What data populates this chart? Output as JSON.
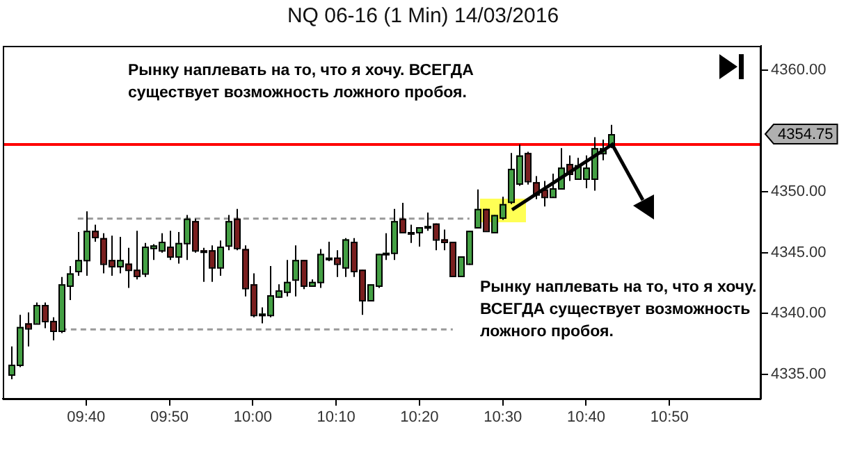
{
  "chart_data": {
    "type": "candlestick",
    "title": "NQ 06-16 (1 Min)  14/03/2016",
    "x": [
      "2016-03-14T09:31",
      "2016-03-14T09:32",
      "2016-03-14T09:33",
      "2016-03-14T09:34",
      "2016-03-14T09:35",
      "2016-03-14T09:36",
      "2016-03-14T09:37",
      "2016-03-14T09:38",
      "2016-03-14T09:39",
      "2016-03-14T09:40",
      "2016-03-14T09:41",
      "2016-03-14T09:42",
      "2016-03-14T09:43",
      "2016-03-14T09:44",
      "2016-03-14T09:45",
      "2016-03-14T09:46",
      "2016-03-14T09:47",
      "2016-03-14T09:48",
      "2016-03-14T09:49",
      "2016-03-14T09:50",
      "2016-03-14T09:51",
      "2016-03-14T09:52",
      "2016-03-14T09:53",
      "2016-03-14T09:54",
      "2016-03-14T09:55",
      "2016-03-14T09:56",
      "2016-03-14T09:57",
      "2016-03-14T09:58",
      "2016-03-14T09:59",
      "2016-03-14T10:00",
      "2016-03-14T10:01",
      "2016-03-14T10:02",
      "2016-03-14T10:03",
      "2016-03-14T10:04",
      "2016-03-14T10:05",
      "2016-03-14T10:06",
      "2016-03-14T10:07",
      "2016-03-14T10:08",
      "2016-03-14T10:09",
      "2016-03-14T10:10",
      "2016-03-14T10:11",
      "2016-03-14T10:12",
      "2016-03-14T10:13",
      "2016-03-14T10:14",
      "2016-03-14T10:15",
      "2016-03-14T10:16",
      "2016-03-14T10:17",
      "2016-03-14T10:18",
      "2016-03-14T10:19",
      "2016-03-14T10:20",
      "2016-03-14T10:21",
      "2016-03-14T10:22",
      "2016-03-14T10:23",
      "2016-03-14T10:24",
      "2016-03-14T10:25",
      "2016-03-14T10:26",
      "2016-03-14T10:27",
      "2016-03-14T10:28",
      "2016-03-14T10:29",
      "2016-03-14T10:30",
      "2016-03-14T10:31",
      "2016-03-14T10:32",
      "2016-03-14T10:33",
      "2016-03-14T10:34",
      "2016-03-14T10:35",
      "2016-03-14T10:36",
      "2016-03-14T10:37",
      "2016-03-14T10:38",
      "2016-03-14T10:39",
      "2016-03-14T10:40",
      "2016-03-14T10:41",
      "2016-03-14T10:42",
      "2016-03-14T10:43"
    ],
    "ohlc": [
      [
        4335.0,
        4337.3,
        4334.6,
        4335.8
      ],
      [
        4335.8,
        4339.9,
        4335.6,
        4338.9
      ],
      [
        4339.2,
        4340.1,
        4337.3,
        4338.8
      ],
      [
        4339.2,
        4340.9,
        4339.2,
        4340.7
      ],
      [
        4340.7,
        4340.9,
        4338.8,
        4339.4
      ],
      [
        4339.4,
        4339.7,
        4337.8,
        4338.6
      ],
      [
        4338.6,
        4343.0,
        4338.4,
        4342.4
      ],
      [
        4342.3,
        4343.9,
        4341.1,
        4343.3
      ],
      [
        4343.5,
        4346.7,
        4343.1,
        4344.4
      ],
      [
        4344.4,
        4348.4,
        4343.1,
        4346.8
      ],
      [
        4346.8,
        4347.3,
        4345.9,
        4346.3
      ],
      [
        4346.2,
        4346.6,
        4343.3,
        4344.1
      ],
      [
        4344.4,
        4346.4,
        4343.1,
        4343.9
      ],
      [
        4343.9,
        4346.3,
        4343.3,
        4344.4
      ],
      [
        4344.1,
        4345.4,
        4342.1,
        4343.6
      ],
      [
        4343.6,
        4346.8,
        4342.8,
        4343.1
      ],
      [
        4343.3,
        4345.8,
        4343.0,
        4345.5
      ],
      [
        4345.4,
        4345.7,
        4344.4,
        4345.6
      ],
      [
        4345.2,
        4346.6,
        4345.0,
        4345.9
      ],
      [
        4345.5,
        4346.8,
        4344.4,
        4344.7
      ],
      [
        4344.7,
        4346.7,
        4344.1,
        4345.8
      ],
      [
        4345.8,
        4348.1,
        4344.4,
        4347.8
      ],
      [
        4347.6,
        4347.8,
        4345.0,
        4345.2
      ],
      [
        4345.2,
        4345.4,
        4342.6,
        4345.1
      ],
      [
        4345.2,
        4345.6,
        4342.6,
        4343.8
      ],
      [
        4343.8,
        4346.0,
        4343.1,
        4345.5
      ],
      [
        4345.6,
        4348.1,
        4345.2,
        4347.6
      ],
      [
        4347.8,
        4348.6,
        4345.2,
        4345.4
      ],
      [
        4345.3,
        4345.6,
        4341.4,
        4342.1
      ],
      [
        4342.4,
        4343.3,
        4339.7,
        4339.9
      ],
      [
        4339.9,
        4340.5,
        4339.2,
        4340.0
      ],
      [
        4339.9,
        4343.9,
        4339.7,
        4341.5
      ],
      [
        4341.4,
        4342.4,
        4341.3,
        4341.9
      ],
      [
        4341.8,
        4344.4,
        4341.4,
        4342.6
      ],
      [
        4342.8,
        4345.6,
        4341.4,
        4344.4
      ],
      [
        4344.4,
        4344.4,
        4342.0,
        4342.3
      ],
      [
        4342.3,
        4342.8,
        4342.2,
        4342.6
      ],
      [
        4342.6,
        4345.3,
        4342.1,
        4344.9
      ],
      [
        4344.5,
        4345.9,
        4344.3,
        4344.6
      ],
      [
        4344.6,
        4345.2,
        4343.0,
        4344.1
      ],
      [
        4343.8,
        4346.2,
        4343.0,
        4346.1
      ],
      [
        4345.9,
        4346.2,
        4343.0,
        4343.5
      ],
      [
        4343.6,
        4343.6,
        4339.9,
        4341.1
      ],
      [
        4341.1,
        4342.4,
        4341.1,
        4342.4
      ],
      [
        4342.3,
        4344.9,
        4342.1,
        4344.9
      ],
      [
        4344.9,
        4346.6,
        4344.4,
        4345.0
      ],
      [
        4345.0,
        4348.6,
        4344.4,
        4347.6
      ],
      [
        4347.8,
        4349.1,
        4346.7,
        4346.7
      ],
      [
        4346.7,
        4347.3,
        4345.8,
        4346.6
      ],
      [
        4346.7,
        4347.1,
        4345.5,
        4347.1
      ],
      [
        4347.1,
        4348.3,
        4346.8,
        4347.2
      ],
      [
        4347.4,
        4347.4,
        4345.2,
        4346.1
      ],
      [
        4346.1,
        4346.9,
        4345.2,
        4345.9
      ],
      [
        4345.9,
        4345.9,
        4343.1,
        4343.1
      ],
      [
        4343.1,
        4344.7,
        4343.1,
        4344.7
      ],
      [
        4344.1,
        4346.8,
        4344.0,
        4346.8
      ],
      [
        4347.1,
        4350.2,
        4347.1,
        4348.6
      ],
      [
        4348.6,
        4348.6,
        4346.8,
        4346.8
      ],
      [
        4346.7,
        4348.1,
        4346.7,
        4348.1
      ],
      [
        4347.9,
        4349.6,
        4347.7,
        4349.0
      ],
      [
        4349.2,
        4353.2,
        4349.0,
        4351.9
      ],
      [
        4350.7,
        4353.9,
        4350.5,
        4353.0
      ],
      [
        4353.2,
        4353.3,
        4350.6,
        4350.9
      ],
      [
        4350.8,
        4351.3,
        4349.4,
        4349.8
      ],
      [
        4350.2,
        4350.9,
        4348.8,
        4349.6
      ],
      [
        4349.6,
        4351.5,
        4349.5,
        4350.3
      ],
      [
        4350.3,
        4353.6,
        4350.2,
        4352.0
      ],
      [
        4352.3,
        4353.0,
        4350.9,
        4351.5
      ],
      [
        4351.1,
        4352.8,
        4351.1,
        4352.2
      ],
      [
        4351.1,
        4353.0,
        4350.3,
        4352.0
      ],
      [
        4351.1,
        4354.5,
        4350.1,
        4353.6
      ],
      [
        4353.2,
        4354.3,
        4352.6,
        4353.6
      ],
      [
        4353.9,
        4355.5,
        4353.6,
        4354.75
      ]
    ],
    "colors": [
      "#44a044",
      "#44a044",
      "#7a1f1f",
      "#44a044",
      "#7a1f1f",
      "#7a1f1f",
      "#44a044",
      "#44a044",
      "#44a044",
      "#44a044",
      "#7a1f1f",
      "#7a1f1f",
      "#7a1f1f",
      "#44a044",
      "#7a1f1f",
      "#7a1f1f",
      "#44a044",
      "#44a044",
      "#44a044",
      "#7a1f1f",
      "#44a044",
      "#44a044",
      "#7a1f1f",
      "#7a1f1f",
      "#7a1f1f",
      "#44a044",
      "#44a044",
      "#7a1f1f",
      "#7a1f1f",
      "#7a1f1f",
      "#44a044",
      "#44a044",
      "#44a044",
      "#44a044",
      "#44a044",
      "#7a1f1f",
      "#44a044",
      "#44a044",
      "#44a044",
      "#7a1f1f",
      "#44a044",
      "#7a1f1f",
      "#7a1f1f",
      "#44a044",
      "#44a044",
      "#44a044",
      "#44a044",
      "#7a1f1f",
      "#7a1f1f",
      "#44a044",
      "#44a044",
      "#7a1f1f",
      "#7a1f1f",
      "#7a1f1f",
      "#44a044",
      "#44a044",
      "#44a044",
      "#7a1f1f",
      "#44a044",
      "#44a044",
      "#44a044",
      "#44a044",
      "#7a1f1f",
      "#7a1f1f",
      "#7a1f1f",
      "#44a044",
      "#44a044",
      "#7a1f1f",
      "#44a044",
      "#44a044",
      "#44a044",
      "#44a044",
      "#44a044"
    ],
    "series": [
      {
        "type": "line",
        "color": "#999999",
        "line_style": "dashed",
        "x": [
          "2016-03-14T09:39",
          "2016-03-14T10:26"
        ],
        "values": [
          4347.8,
          4347.8
        ]
      },
      {
        "type": "line",
        "color": "#999999",
        "line_style": "dashed",
        "x": [
          "2016-03-14T09:37",
          "2016-03-14T10:24"
        ],
        "values": [
          4338.7,
          4338.7
        ]
      }
    ],
    "ref_lines": [
      {
        "axis": "y",
        "value": 4353.9,
        "color": "#ff0000"
      }
    ],
    "xlim": [
      "2016-03-14T09:30",
      "2016-03-14T11:01"
    ],
    "xticks": [
      {
        "value": "2016-03-14T09:40",
        "label": "09:40"
      },
      {
        "value": "2016-03-14T09:50",
        "label": "09:50"
      },
      {
        "value": "2016-03-14T10:00",
        "label": "10:00"
      },
      {
        "value": "2016-03-14T10:10",
        "label": "10:10"
      },
      {
        "value": "2016-03-14T10:20",
        "label": "10:20"
      },
      {
        "value": "2016-03-14T10:30",
        "label": "10:30"
      },
      {
        "value": "2016-03-14T10:40",
        "label": "10:40"
      },
      {
        "value": "2016-03-14T10:50",
        "label": "10:50"
      }
    ],
    "ylim": [
      4333,
      4362
    ],
    "yticks": [
      {
        "value": 4335,
        "label": "4335.00"
      },
      {
        "value": 4340,
        "label": "4340.00"
      },
      {
        "value": 4345,
        "label": "4345.00"
      },
      {
        "value": 4350,
        "label": "4350.00"
      },
      {
        "value": 4360,
        "label": "4360.00"
      }
    ],
    "annotations": [
      "Рынку наплевать на то, что я хочу. ВСЕГДА существует возможность ложного пробоя.",
      "Рынку наплевать на то, что я хочу. ВСЕГДА существует возможность ложного пробоя.",
      "4354.75"
    ],
    "grid": false,
    "legend": false
  }
}
